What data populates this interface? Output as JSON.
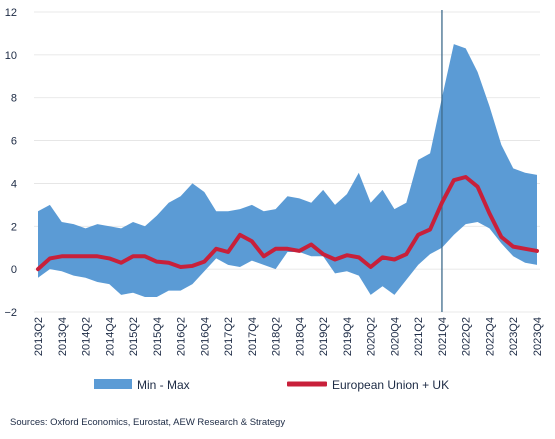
{
  "chart_data": {
    "type": "area",
    "categories": [
      "2013Q2",
      "2013Q3",
      "2013Q4",
      "2014Q1",
      "2014Q2",
      "2014Q3",
      "2014Q4",
      "2015Q1",
      "2015Q2",
      "2015Q3",
      "2015Q4",
      "2016Q1",
      "2016Q2",
      "2016Q3",
      "2016Q4",
      "2017Q1",
      "2017Q2",
      "2017Q3",
      "2017Q4",
      "2018Q1",
      "2018Q2",
      "2018Q3",
      "2018Q4",
      "2019Q1",
      "2019Q2",
      "2019Q3",
      "2019Q4",
      "2020Q1",
      "2020Q2",
      "2020Q3",
      "2020Q4",
      "2021Q1",
      "2021Q2",
      "2021Q3",
      "2021Q4",
      "2022Q1",
      "2022Q2",
      "2022Q3",
      "2022Q4",
      "2023Q1",
      "2023Q2",
      "2023Q3",
      "2023Q4"
    ],
    "tick_labels": [
      "2013Q2",
      "2013Q4",
      "2014Q2",
      "2014Q4",
      "2015Q2",
      "2015Q4",
      "2016Q2",
      "2016Q4",
      "2017Q2",
      "2017Q4",
      "2018Q2",
      "2018Q4",
      "2019Q2",
      "2019Q4",
      "2020Q2",
      "2020Q4",
      "2021Q2",
      "2021Q4",
      "2022Q2",
      "2022Q4",
      "2023Q2",
      "2023Q4"
    ],
    "ylim": [
      -2,
      12
    ],
    "yticks": [
      -2,
      0,
      2,
      4,
      6,
      8,
      10,
      12
    ],
    "series": [
      {
        "name": "Min - Max",
        "kind": "range",
        "color": "#5b9bd5",
        "min": [
          -0.4,
          0.0,
          -0.1,
          -0.3,
          -0.4,
          -0.6,
          -0.7,
          -1.2,
          -1.1,
          -1.3,
          -1.3,
          -1.0,
          -1.0,
          -0.7,
          -0.1,
          0.5,
          0.2,
          0.1,
          0.4,
          0.2,
          0.0,
          0.8,
          0.8,
          0.6,
          0.6,
          -0.2,
          -0.1,
          -0.3,
          -1.2,
          -0.8,
          -1.2,
          -0.5,
          0.2,
          0.7,
          1.0,
          1.6,
          2.1,
          2.2,
          1.9,
          1.2,
          0.6,
          0.3,
          0.2
        ],
        "max": [
          2.7,
          3.0,
          2.2,
          2.1,
          1.9,
          2.1,
          2.0,
          1.9,
          2.2,
          2.0,
          2.5,
          3.1,
          3.4,
          4.0,
          3.6,
          2.7,
          2.7,
          2.8,
          3.0,
          2.7,
          2.8,
          3.4,
          3.3,
          3.1,
          3.7,
          3.0,
          3.5,
          4.5,
          3.1,
          3.7,
          2.8,
          3.1,
          5.1,
          5.4,
          8.0,
          10.5,
          10.3,
          9.2,
          7.6,
          5.8,
          4.7,
          4.5,
          4.4
        ]
      },
      {
        "name": "European Union + UK",
        "kind": "line",
        "color": "#c8203a",
        "values": [
          0.0,
          0.5,
          0.6,
          0.6,
          0.6,
          0.6,
          0.5,
          0.3,
          0.6,
          0.6,
          0.35,
          0.3,
          0.1,
          0.15,
          0.35,
          0.95,
          0.8,
          1.6,
          1.3,
          0.6,
          0.95,
          0.95,
          0.85,
          1.15,
          0.7,
          0.45,
          0.65,
          0.55,
          0.1,
          0.55,
          0.45,
          0.7,
          1.6,
          1.85,
          3.1,
          4.15,
          4.3,
          3.85,
          2.6,
          1.5,
          1.05,
          0.95,
          0.85
        ]
      }
    ],
    "vline_at": "2021Q4",
    "vline_color": "#3f6b8c",
    "legend_position": "bottom",
    "source": "Sources: Oxford Economics, Eurostat, AEW Research & Strategy"
  }
}
